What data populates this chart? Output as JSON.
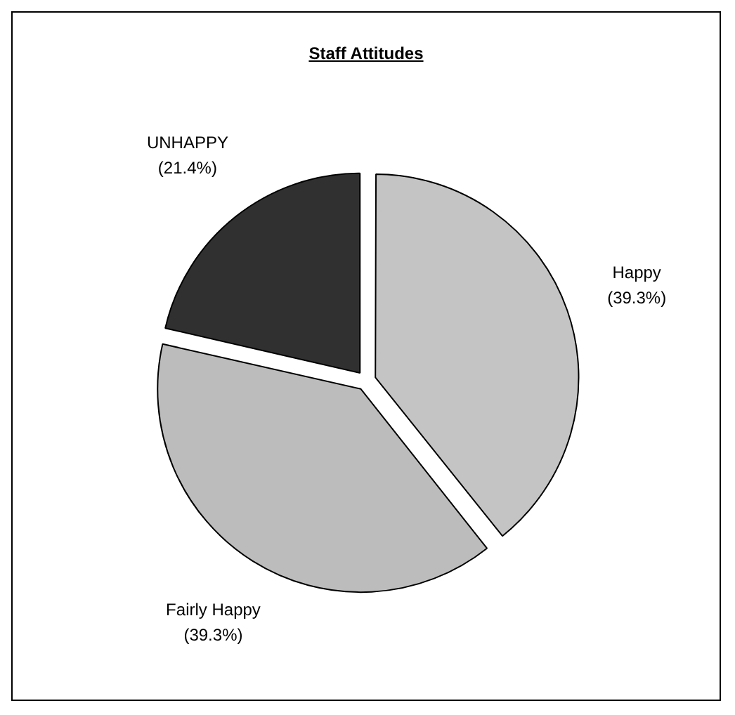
{
  "chart_data": {
    "type": "pie",
    "title": "Staff Attitudes",
    "categories": [
      "Happy",
      "Fairly Happy",
      "UNHAPPY"
    ],
    "values": [
      39.3,
      39.3,
      21.4
    ],
    "colors": [
      "#c4c4c4",
      "#bcbcbc",
      "#303030"
    ],
    "value_labels": [
      "(39.3%)",
      "(39.3%)",
      "(21.4%)"
    ],
    "legend": false
  }
}
